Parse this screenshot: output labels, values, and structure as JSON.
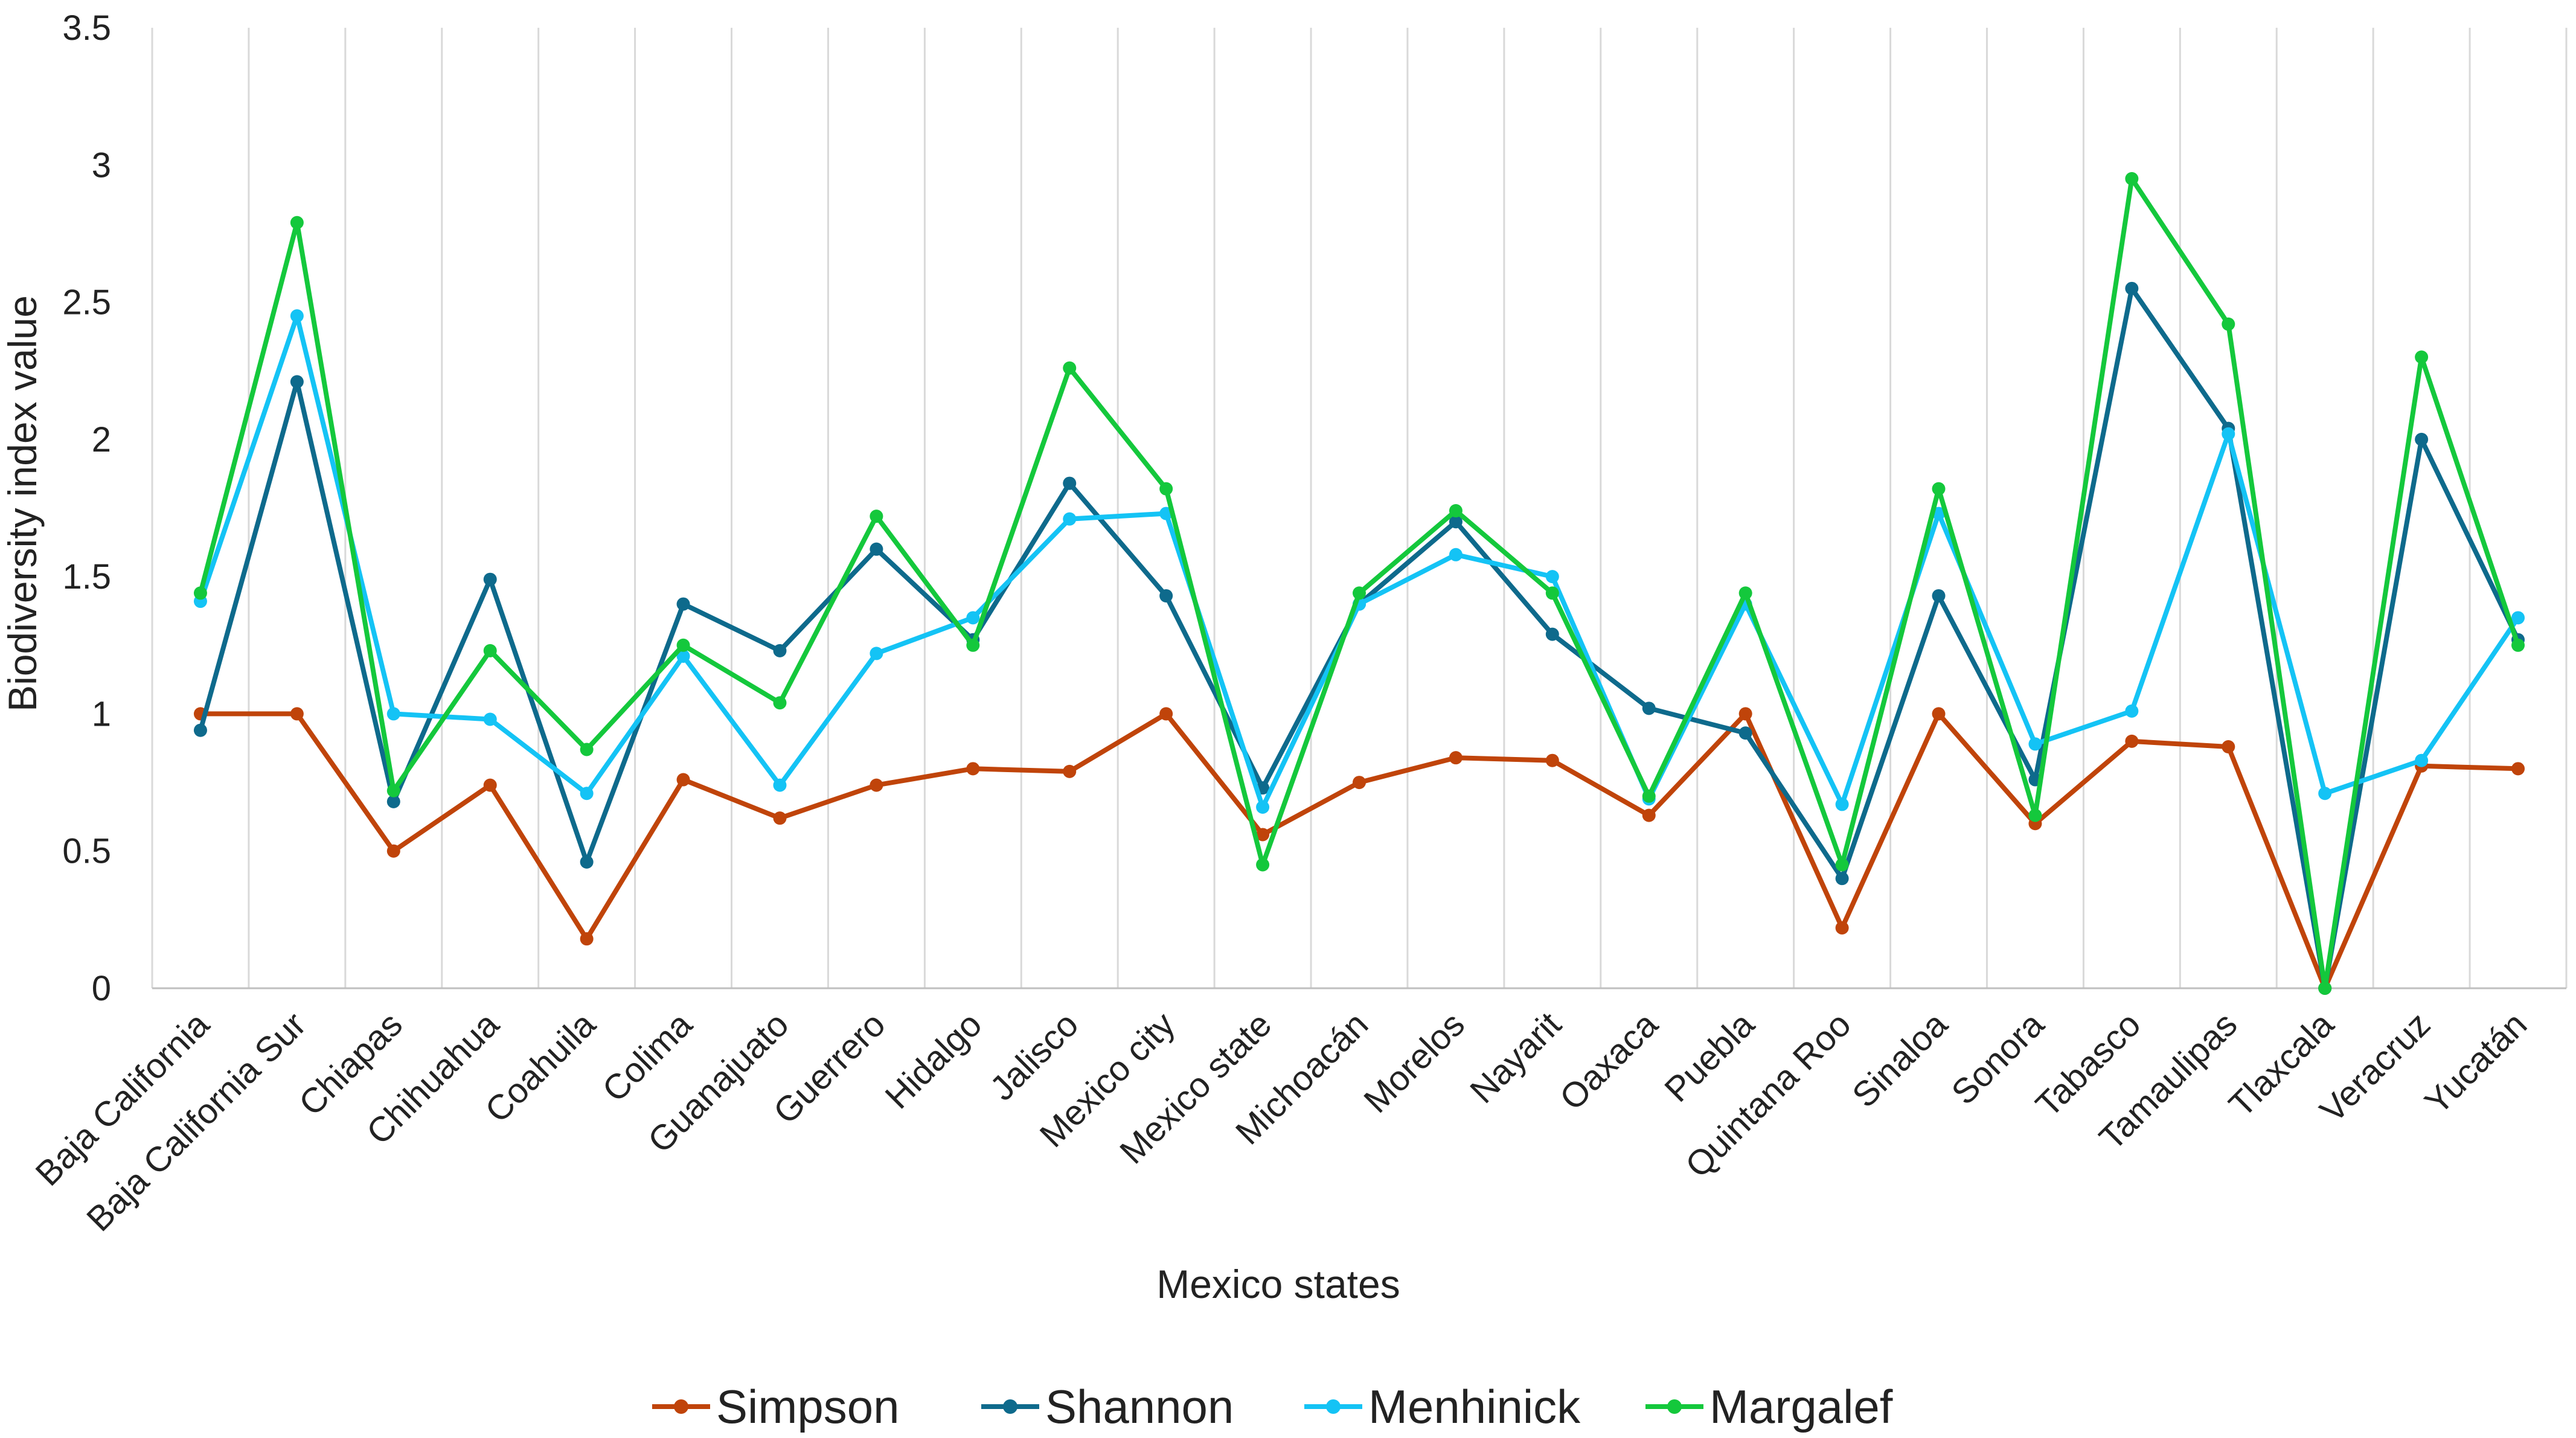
{
  "chart_data": {
    "type": "line",
    "title": "",
    "xlabel": "Mexico states",
    "ylabel": "Biodiversity index value",
    "ylim": [
      0,
      3.5
    ],
    "yticks": [
      0,
      0.5,
      1,
      1.5,
      2,
      2.5,
      3,
      3.5
    ],
    "ytick_labels": [
      "0",
      "0.5",
      "1",
      "1.5",
      "2",
      "2.5",
      "3",
      "3.5"
    ],
    "grid": "vertical",
    "legend_position": "bottom",
    "categories": [
      "Baja California",
      "Baja California Sur",
      "Chiapas",
      "Chihuahua",
      "Coahuila",
      "Colima",
      "Guanajuato",
      "Guerrero",
      "Hidalgo",
      "Jalisco",
      "Mexico city",
      "Mexico state",
      "Michoacán",
      "Morelos",
      "Nayarit",
      "Oaxaca",
      "Puebla",
      "Quintana Roo",
      "Sinaloa",
      "Sonora",
      "Tabasco",
      "Tamaulipas",
      "Tlaxcala",
      "Veracruz",
      "Yucatán"
    ],
    "series": [
      {
        "name": "Simpson",
        "color": "#C0440A",
        "values": [
          1.0,
          1.0,
          0.5,
          0.74,
          0.18,
          0.76,
          0.62,
          0.74,
          0.8,
          0.79,
          1.0,
          0.56,
          0.75,
          0.84,
          0.83,
          0.63,
          1.0,
          0.22,
          1.0,
          0.6,
          0.9,
          0.88,
          0.0,
          0.81,
          0.8
        ]
      },
      {
        "name": "Shannon",
        "color": "#0E6A8C",
        "values": [
          0.94,
          2.21,
          0.68,
          1.49,
          0.46,
          1.4,
          1.23,
          1.6,
          1.27,
          1.84,
          1.43,
          0.73,
          1.4,
          1.7,
          1.29,
          1.02,
          0.93,
          0.4,
          1.43,
          0.76,
          2.55,
          2.04,
          0.0,
          2.0,
          1.27
        ]
      },
      {
        "name": "Menhinick",
        "color": "#14C3F5",
        "values": [
          1.41,
          2.45,
          1.0,
          0.98,
          0.71,
          1.21,
          0.74,
          1.22,
          1.35,
          1.71,
          1.73,
          0.66,
          1.4,
          1.58,
          1.5,
          0.69,
          1.4,
          0.67,
          1.73,
          0.89,
          1.01,
          2.02,
          0.71,
          0.83,
          1.35
        ]
      },
      {
        "name": "Margalef",
        "color": "#14C83C",
        "values": [
          1.44,
          2.79,
          0.72,
          1.23,
          0.87,
          1.25,
          1.04,
          1.72,
          1.25,
          2.26,
          1.82,
          0.45,
          1.44,
          1.74,
          1.44,
          0.7,
          1.44,
          0.45,
          1.82,
          0.63,
          2.95,
          2.42,
          0.0,
          2.3,
          1.25
        ]
      }
    ]
  }
}
